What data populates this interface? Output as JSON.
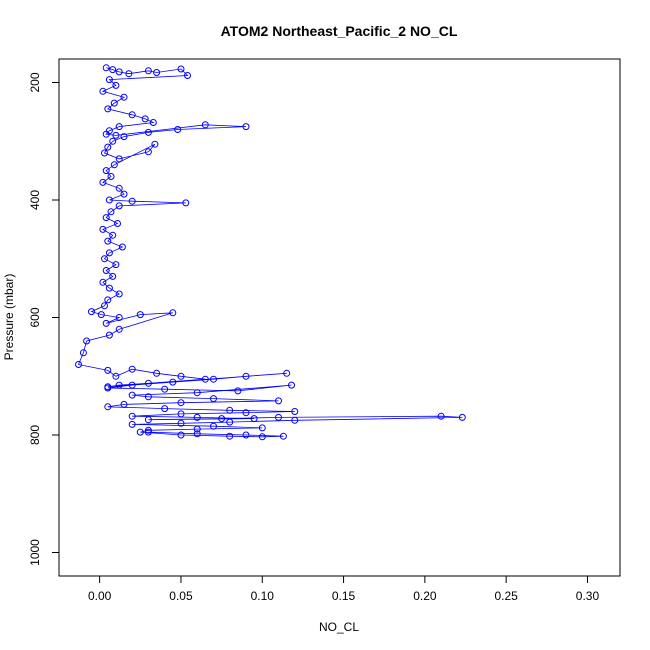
{
  "chart_data": {
    "type": "scatter",
    "title": "ATOM2 Northeast_Pacific_2 NO_CL",
    "xlabel": "NO_CL",
    "ylabel": "Pressure (mbar)",
    "xlim": [
      -0.025,
      0.32
    ],
    "ylim": [
      1040,
      160
    ],
    "y_reversed": true,
    "grid": false,
    "x_ticks": [
      0.0,
      0.05,
      0.1,
      0.15,
      0.2,
      0.25,
      0.3
    ],
    "x_tick_labels": [
      "0.00",
      "0.05",
      "0.10",
      "0.15",
      "0.20",
      "0.25",
      "0.30"
    ],
    "y_ticks": [
      200,
      400,
      600,
      800,
      1000
    ],
    "y_tick_labels": [
      "200",
      "400",
      "600",
      "800",
      "1000"
    ],
    "marker": "open-circle",
    "connect_points": true,
    "series_color": "#0000ff",
    "series": [
      {
        "x": [
          0.004,
          0.008,
          0.012,
          0.018,
          0.03,
          0.035,
          0.05,
          0.054,
          0.006,
          0.01,
          0.002,
          0.015,
          0.009,
          0.005,
          0.02,
          0.028,
          0.033,
          0.012,
          0.006,
          0.004,
          0.01,
          0.065,
          0.09,
          0.048,
          0.03,
          0.015,
          0.008,
          0.005,
          0.003,
          0.012,
          0.03,
          0.034,
          0.009,
          0.004,
          0.007,
          0.002,
          0.012,
          0.015,
          0.006,
          0.02,
          0.053,
          0.012,
          0.007,
          0.004,
          0.011,
          0.002,
          0.008,
          0.005,
          0.014,
          0.006,
          0.003,
          0.01,
          0.004,
          0.008,
          0.002,
          0.006,
          0.012,
          0.005,
          0.003,
          -0.005,
          0.001,
          0.012,
          0.004,
          0.025,
          0.045,
          0.012,
          0.006,
          -0.008,
          -0.01,
          -0.013,
          0.005,
          0.01,
          0.02,
          0.035,
          0.05,
          0.065,
          0.03,
          0.012,
          0.005,
          0.115,
          0.09,
          0.07,
          0.045,
          0.02,
          0.005,
          0.04,
          0.085,
          0.118,
          0.06,
          0.02,
          0.03,
          0.07,
          0.11,
          0.05,
          0.015,
          0.005,
          0.04,
          0.08,
          0.12,
          0.09,
          0.05,
          0.02,
          0.06,
          0.095,
          0.03,
          0.075,
          0.11,
          0.21,
          0.223,
          0.12,
          0.08,
          0.05,
          0.02,
          0.07,
          0.1,
          0.06,
          0.03,
          0.025,
          0.05,
          0.08,
          0.1,
          0.113,
          0.09,
          0.06,
          0.03
        ],
        "y": [
          175,
          178,
          182,
          185,
          180,
          183,
          177,
          188,
          195,
          205,
          215,
          225,
          235,
          245,
          255,
          262,
          268,
          275,
          282,
          288,
          290,
          272,
          275,
          280,
          285,
          292,
          300,
          310,
          320,
          330,
          318,
          305,
          340,
          350,
          360,
          370,
          380,
          390,
          400,
          402,
          405,
          410,
          420,
          430,
          440,
          450,
          460,
          470,
          480,
          490,
          500,
          510,
          520,
          530,
          540,
          550,
          560,
          570,
          580,
          590,
          595,
          600,
          610,
          595,
          592,
          620,
          630,
          640,
          660,
          680,
          690,
          700,
          688,
          695,
          700,
          705,
          712,
          715,
          718,
          695,
          700,
          705,
          710,
          715,
          720,
          722,
          725,
          715,
          728,
          732,
          735,
          738,
          742,
          745,
          748,
          752,
          755,
          758,
          760,
          762,
          764,
          768,
          770,
          772,
          774,
          772,
          770,
          768,
          770,
          775,
          778,
          780,
          782,
          785,
          788,
          790,
          792,
          795,
          800,
          802,
          803,
          802,
          800,
          798,
          795
        ]
      }
    ]
  }
}
